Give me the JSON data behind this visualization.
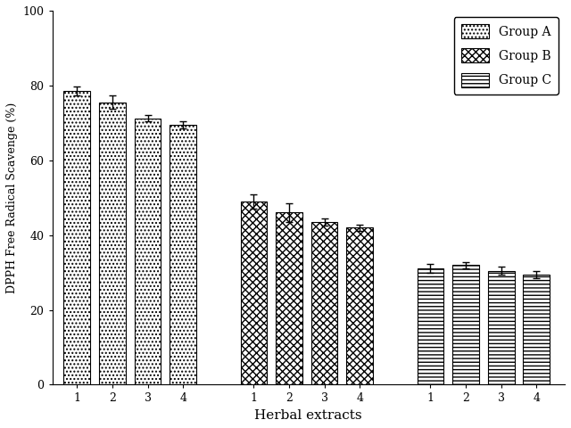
{
  "groups": [
    "A",
    "B",
    "C"
  ],
  "values": {
    "A": [
      78.5,
      75.5,
      71.2,
      69.5
    ],
    "B": [
      49.0,
      46.0,
      43.5,
      42.0
    ],
    "C": [
      31.0,
      32.0,
      30.5,
      29.5
    ]
  },
  "errors": {
    "A": [
      1.2,
      1.8,
      0.8,
      0.9
    ],
    "B": [
      2.0,
      2.5,
      0.9,
      0.8
    ],
    "C": [
      1.2,
      0.8,
      1.0,
      1.0
    ]
  },
  "xlabel": "Herbal extracts",
  "ylabel": "DPPH Free Radical Scavenge (%)",
  "ylim": [
    0,
    100
  ],
  "yticks": [
    0,
    20,
    40,
    60,
    80,
    100
  ],
  "group_positions": {
    "A": [
      1,
      2,
      3,
      4
    ],
    "B": [
      6,
      7,
      8,
      9
    ],
    "C": [
      11,
      12,
      13,
      14
    ]
  },
  "bar_width": 0.75,
  "legend_labels": [
    "Group A",
    "Group B",
    "Group C"
  ],
  "xlim": [
    0.3,
    14.8
  ]
}
